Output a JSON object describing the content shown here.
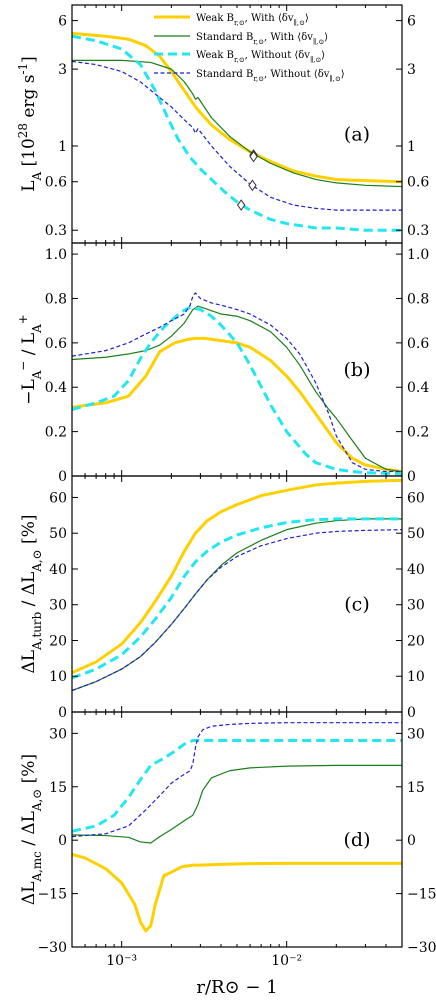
{
  "colors": {
    "weak_with": "#FFD000",
    "std_with": "#1a7f1a",
    "weak_without": "#22E6F0",
    "std_without": "#1f1fd0"
  },
  "legend": [
    {
      "label": "Weak B_{r,⊙}, With ⟨δv_{∥,⊙}⟩",
      "series": "weak_with"
    },
    {
      "label": "Standard B_{r,⊙}, With ⟨δv_{∥,⊙}⟩",
      "series": "std_with"
    },
    {
      "label": "Weak B_{r,⊙}, Without ⟨δv_{∥,⊙}⟩",
      "series": "weak_without"
    },
    {
      "label": "Standard B_{r,⊙}, Without ⟨δv_{∥,⊙}⟩",
      "series": "std_without"
    }
  ],
  "xlabel": "r/R⊙ − 1",
  "x_tick_labels": [
    "10⁻³",
    "10⁻²"
  ],
  "chart_data": [
    {
      "panel": "(a)",
      "type": "line",
      "xscale": "log",
      "yscale": "log",
      "xlim": [
        0.0005,
        0.05
      ],
      "ylim": [
        0.25,
        7.5
      ],
      "ylabel": "L_A [10^28 erg s^-1]",
      "yticks": [
        0.3,
        0.6,
        1,
        3,
        6
      ],
      "ytick_labels": [
        "0.3",
        "0.6",
        "1",
        "3",
        "6"
      ],
      "series": [
        {
          "name": "Weak B_{r,⊙}, With ⟨δv_{∥,⊙}⟩",
          "key": "weak_with",
          "style": "solid",
          "width": 3,
          "x": [
            0.0005,
            0.0008,
            0.0011,
            0.0014,
            0.0017,
            0.002,
            0.0024,
            0.0028,
            0.0035,
            0.0045,
            0.006,
            0.008,
            0.011,
            0.015,
            0.02,
            0.03,
            0.05
          ],
          "y": [
            5.0,
            4.8,
            4.6,
            4.2,
            3.6,
            2.9,
            2.2,
            1.75,
            1.35,
            1.1,
            0.92,
            0.8,
            0.7,
            0.65,
            0.62,
            0.61,
            0.6
          ]
        },
        {
          "name": "Standard B_{r,⊙}, With ⟨δv_{∥,⊙}⟩",
          "key": "std_with",
          "style": "solid",
          "width": 1.2,
          "x": [
            0.0005,
            0.001,
            0.0015,
            0.002,
            0.0024,
            0.0027,
            0.0028,
            0.0029,
            0.0035,
            0.0045,
            0.006,
            0.008,
            0.011,
            0.015,
            0.02,
            0.03,
            0.05
          ],
          "y": [
            3.4,
            3.4,
            3.3,
            3.0,
            2.5,
            2.1,
            1.95,
            2.0,
            1.5,
            1.15,
            0.92,
            0.78,
            0.68,
            0.62,
            0.59,
            0.57,
            0.56
          ]
        },
        {
          "name": "Weak B_{r,⊙}, Without ⟨δv_{∥,⊙}⟩",
          "key": "weak_without",
          "style": "dashed",
          "width": 3,
          "x": [
            0.0005,
            0.0007,
            0.001,
            0.0013,
            0.0016,
            0.0019,
            0.0022,
            0.0026,
            0.003,
            0.0035,
            0.0042,
            0.005,
            0.006,
            0.008,
            0.01,
            0.015,
            0.02,
            0.03,
            0.05
          ],
          "y": [
            4.8,
            4.5,
            4.0,
            3.2,
            2.2,
            1.5,
            1.1,
            0.85,
            0.72,
            0.62,
            0.52,
            0.45,
            0.4,
            0.35,
            0.33,
            0.31,
            0.31,
            0.3,
            0.3
          ]
        },
        {
          "name": "Standard B_{r,⊙}, Without ⟨δv_{∥,⊙}⟩",
          "key": "std_without",
          "style": "dashed",
          "width": 1.2,
          "x": [
            0.0005,
            0.0007,
            0.001,
            0.0013,
            0.0016,
            0.002,
            0.0024,
            0.0027,
            0.0028,
            0.0029,
            0.0035,
            0.0045,
            0.006,
            0.008,
            0.011,
            0.015,
            0.02,
            0.03,
            0.05
          ],
          "y": [
            3.35,
            3.2,
            2.9,
            2.5,
            2.1,
            1.75,
            1.45,
            1.3,
            1.2,
            1.28,
            1.0,
            0.75,
            0.58,
            0.48,
            0.43,
            0.41,
            0.4,
            0.4,
            0.4
          ]
        }
      ],
      "markers": [
        {
          "series": "weak_with",
          "x": 0.0063,
          "y": 0.88
        },
        {
          "series": "std_with",
          "x": 0.0063,
          "y": 0.86
        },
        {
          "series": "std_without",
          "x": 0.0062,
          "y": 0.57
        },
        {
          "series": "weak_without",
          "x": 0.0053,
          "y": 0.43
        }
      ]
    },
    {
      "panel": "(b)",
      "type": "line",
      "xscale": "log",
      "yscale": "linear",
      "xlim": [
        0.0005,
        0.05
      ],
      "ylim": [
        0,
        1.05
      ],
      "ylabel": "−L_A^− / L_A^+",
      "yticks": [
        0,
        0.2,
        0.4,
        0.6,
        0.8,
        1.0
      ],
      "ytick_labels": [
        "0",
        "0.2",
        "0.4",
        "0.6",
        "0.8",
        "1.0"
      ],
      "series": [
        {
          "name": "Weak B_{r,⊙}, With ⟨δv_{∥,⊙}⟩",
          "key": "weak_with",
          "style": "solid",
          "width": 3,
          "x": [
            0.0005,
            0.0008,
            0.0011,
            0.0014,
            0.0017,
            0.0021,
            0.0025,
            0.0028,
            0.0032,
            0.004,
            0.005,
            0.006,
            0.008,
            0.01,
            0.012,
            0.015,
            0.02,
            0.025,
            0.03,
            0.04,
            0.05
          ],
          "y": [
            0.31,
            0.33,
            0.36,
            0.45,
            0.56,
            0.6,
            0.615,
            0.62,
            0.62,
            0.61,
            0.6,
            0.58,
            0.52,
            0.45,
            0.38,
            0.28,
            0.15,
            0.08,
            0.05,
            0.03,
            0.02
          ]
        },
        {
          "name": "Standard B_{r,⊙}, With ⟨δv_{∥,⊙}⟩",
          "key": "std_with",
          "style": "solid",
          "width": 1.2,
          "x": [
            0.0005,
            0.0008,
            0.0011,
            0.0014,
            0.0017,
            0.002,
            0.0024,
            0.0027,
            0.0029,
            0.0032,
            0.004,
            0.005,
            0.006,
            0.008,
            0.01,
            0.012,
            0.015,
            0.018,
            0.02,
            0.025,
            0.03,
            0.04,
            0.05
          ],
          "y": [
            0.525,
            0.535,
            0.55,
            0.565,
            0.59,
            0.63,
            0.69,
            0.75,
            0.765,
            0.755,
            0.73,
            0.72,
            0.7,
            0.65,
            0.58,
            0.5,
            0.38,
            0.3,
            0.26,
            0.16,
            0.08,
            0.03,
            0.02
          ]
        },
        {
          "name": "Weak B_{r,⊙}, Without ⟨δv_{∥,⊙}⟩",
          "key": "weak_without",
          "style": "dashed",
          "width": 3,
          "x": [
            0.0005,
            0.0007,
            0.0009,
            0.0011,
            0.0013,
            0.0015,
            0.0018,
            0.002,
            0.0023,
            0.0026,
            0.003,
            0.0035,
            0.004,
            0.005,
            0.006,
            0.008,
            0.01,
            0.013,
            0.015,
            0.02,
            0.025,
            0.03,
            0.05
          ],
          "y": [
            0.3,
            0.33,
            0.36,
            0.43,
            0.53,
            0.6,
            0.67,
            0.7,
            0.74,
            0.76,
            0.75,
            0.72,
            0.68,
            0.6,
            0.5,
            0.32,
            0.2,
            0.1,
            0.06,
            0.03,
            0.02,
            0.015,
            0.01
          ]
        },
        {
          "name": "Standard B_{r,⊙}, Without ⟨δv_{∥,⊙}⟩",
          "key": "std_without",
          "style": "dashed",
          "width": 1.2,
          "x": [
            0.0005,
            0.0008,
            0.0011,
            0.0014,
            0.0017,
            0.002,
            0.0024,
            0.0026,
            0.0027,
            0.0028,
            0.003,
            0.0035,
            0.004,
            0.005,
            0.006,
            0.008,
            0.01,
            0.012,
            0.015,
            0.018,
            0.02,
            0.025,
            0.03,
            0.04,
            0.05
          ],
          "y": [
            0.54,
            0.565,
            0.6,
            0.64,
            0.67,
            0.7,
            0.73,
            0.77,
            0.81,
            0.825,
            0.8,
            0.78,
            0.77,
            0.75,
            0.73,
            0.68,
            0.62,
            0.55,
            0.42,
            0.28,
            0.18,
            0.06,
            0.03,
            0.02,
            0.02
          ]
        }
      ]
    },
    {
      "panel": "(c)",
      "type": "line",
      "xscale": "log",
      "yscale": "linear",
      "xlim": [
        0.0005,
        0.05
      ],
      "ylim": [
        0,
        66
      ],
      "ylabel": "ΔL_{A,turb} / ΔL_{A,⊙} [%]",
      "yticks": [
        0,
        10,
        20,
        30,
        40,
        50,
        60
      ],
      "ytick_labels": [
        "0",
        "10",
        "20",
        "30",
        "40",
        "50",
        "60"
      ],
      "series": [
        {
          "name": "Weak B_{r,⊙}, With ⟨δv_{∥,⊙}⟩",
          "key": "weak_with",
          "style": "solid",
          "width": 3,
          "x": [
            0.0005,
            0.0007,
            0.001,
            0.0013,
            0.0016,
            0.002,
            0.0024,
            0.0028,
            0.0033,
            0.004,
            0.005,
            0.007,
            0.01,
            0.015,
            0.02,
            0.03,
            0.05
          ],
          "y": [
            11,
            14,
            19,
            25,
            31,
            38,
            45,
            50,
            53.5,
            56,
            58,
            60.5,
            62,
            63.5,
            64,
            64.5,
            64.8
          ]
        },
        {
          "name": "Standard B_{r,⊙}, With ⟨δv_{∥,⊙}⟩",
          "key": "std_with",
          "style": "solid",
          "width": 1.2,
          "x": [
            0.0005,
            0.0007,
            0.001,
            0.0013,
            0.0016,
            0.002,
            0.0024,
            0.0028,
            0.0033,
            0.004,
            0.005,
            0.007,
            0.01,
            0.015,
            0.02,
            0.03,
            0.05
          ],
          "y": [
            6,
            8.5,
            12,
            15.5,
            19.5,
            24.5,
            29,
            33,
            37,
            41,
            44.5,
            48,
            51,
            52.8,
            53.5,
            54,
            54
          ]
        },
        {
          "name": "Weak B_{r,⊙}, Without ⟨δv_{∥,⊙}⟩",
          "key": "weak_without",
          "style": "dashed",
          "width": 3,
          "x": [
            0.0005,
            0.0007,
            0.001,
            0.0013,
            0.0016,
            0.002,
            0.0024,
            0.0028,
            0.0033,
            0.004,
            0.005,
            0.007,
            0.01,
            0.015,
            0.02,
            0.03,
            0.05
          ],
          "y": [
            9.5,
            12,
            16,
            21,
            26,
            32,
            38,
            42,
            45,
            47.5,
            49.5,
            51.5,
            53,
            53.8,
            54,
            54,
            54
          ]
        },
        {
          "name": "Standard B_{r,⊙}, Without ⟨δv_{∥,⊙}⟩",
          "key": "std_without",
          "style": "dashed",
          "width": 1.2,
          "x": [
            0.0005,
            0.0007,
            0.001,
            0.0013,
            0.0016,
            0.002,
            0.0024,
            0.0028,
            0.0033,
            0.004,
            0.005,
            0.007,
            0.01,
            0.015,
            0.02,
            0.03,
            0.05
          ],
          "y": [
            6,
            8.5,
            12,
            15.5,
            19.5,
            24.5,
            29,
            33,
            37,
            40.5,
            43.5,
            46.5,
            48.5,
            50,
            50.5,
            50.8,
            51
          ]
        }
      ]
    },
    {
      "panel": "(d)",
      "type": "line",
      "xscale": "log",
      "yscale": "linear",
      "xlim": [
        0.0005,
        0.05
      ],
      "ylim": [
        -30,
        36
      ],
      "ylabel": "ΔL_{A,mc} / ΔL_{A,⊙} [%]",
      "yticks": [
        -30,
        -15,
        0,
        15,
        30
      ],
      "ytick_labels": [
        "−30",
        "−15",
        "0",
        "15",
        "30"
      ],
      "series": [
        {
          "name": "Weak B_{r,⊙}, With ⟨δv_{∥,⊙}⟩",
          "key": "weak_with",
          "style": "solid",
          "width": 3,
          "x": [
            0.0005,
            0.0006,
            0.0008,
            0.001,
            0.0012,
            0.0013,
            0.0014,
            0.0015,
            0.0016,
            0.0018,
            0.002,
            0.0023,
            0.0027,
            0.003,
            0.004,
            0.006,
            0.01,
            0.02,
            0.05
          ],
          "y": [
            -4,
            -5,
            -8,
            -12,
            -18,
            -23,
            -25.5,
            -24,
            -18,
            -10,
            -9,
            -7.5,
            -7,
            -7,
            -6.8,
            -6.6,
            -6.5,
            -6.5,
            -6.5
          ]
        },
        {
          "name": "Standard B_{r,⊙}, With ⟨δv_{∥,⊙}⟩",
          "key": "std_with",
          "style": "solid",
          "width": 1.2,
          "x": [
            0.0005,
            0.0008,
            0.0011,
            0.0013,
            0.0015,
            0.0017,
            0.002,
            0.0024,
            0.0027,
            0.0029,
            0.0031,
            0.0035,
            0.0045,
            0.006,
            0.01,
            0.02,
            0.05
          ],
          "y": [
            1.5,
            1.3,
            0.8,
            -0.5,
            -0.8,
            1,
            3,
            5.5,
            7,
            10,
            14,
            17.5,
            19.5,
            20.3,
            20.8,
            21,
            21
          ]
        },
        {
          "name": "Weak B_{r,⊙}, Without ⟨δv_{∥,⊙}⟩",
          "key": "weak_without",
          "style": "dashed",
          "width": 3,
          "x": [
            0.0005,
            0.0007,
            0.0009,
            0.0011,
            0.0013,
            0.0015,
            0.0018,
            0.0021,
            0.0024,
            0.0027,
            0.003,
            0.004,
            0.006,
            0.01,
            0.02,
            0.05
          ],
          "y": [
            2.5,
            4,
            7,
            12,
            17,
            21,
            23,
            25,
            27,
            28,
            28,
            28,
            28,
            28,
            28,
            28
          ]
        },
        {
          "name": "Standard B_{r,⊙}, Without ⟨δv_{∥,⊙}⟩",
          "key": "std_without",
          "style": "dashed",
          "width": 1.2,
          "x": [
            0.0005,
            0.0008,
            0.0011,
            0.0014,
            0.0017,
            0.002,
            0.0023,
            0.0026,
            0.0027,
            0.0028,
            0.0029,
            0.0031,
            0.0035,
            0.0045,
            0.006,
            0.01,
            0.02,
            0.05
          ],
          "y": [
            1,
            1.8,
            4,
            8.5,
            12.5,
            16,
            18,
            19.5,
            21.5,
            26,
            29,
            31,
            32,
            32.5,
            32.8,
            33,
            33,
            33
          ]
        }
      ]
    }
  ]
}
